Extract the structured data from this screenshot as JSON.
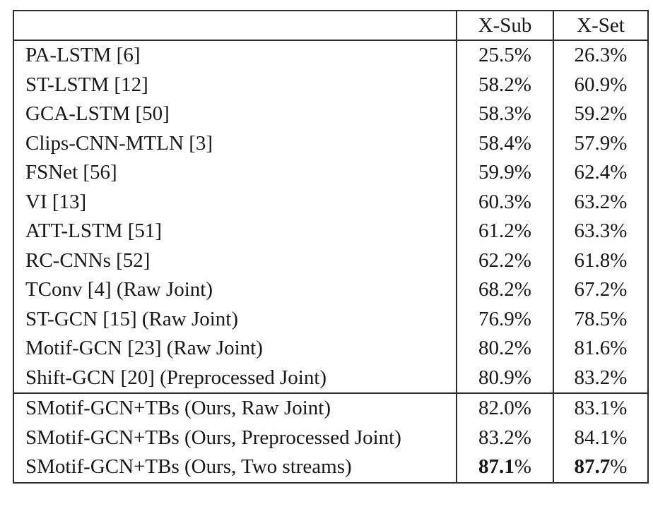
{
  "table": {
    "headers": [
      "",
      "X-Sub",
      "X-Set"
    ],
    "rows": [
      {
        "method": "PA-LSTM [6]",
        "values": [
          "25.5%",
          "26.3%"
        ],
        "bold": false,
        "section": "prior"
      },
      {
        "method": "ST-LSTM [12]",
        "values": [
          "58.2%",
          "60.9%"
        ],
        "bold": false,
        "section": "prior"
      },
      {
        "method": "GCA-LSTM [50]",
        "values": [
          "58.3%",
          "59.2%"
        ],
        "bold": false,
        "section": "prior"
      },
      {
        "method": "Clips-CNN-MTLN [3]",
        "values": [
          "58.4%",
          "57.9%"
        ],
        "bold": false,
        "section": "prior"
      },
      {
        "method": "FSNet [56]",
        "values": [
          "59.9%",
          "62.4%"
        ],
        "bold": false,
        "section": "prior"
      },
      {
        "method": "VI [13]",
        "values": [
          "60.3%",
          "63.2%"
        ],
        "bold": false,
        "section": "prior"
      },
      {
        "method": "ATT-LSTM [51]",
        "values": [
          "61.2%",
          "63.3%"
        ],
        "bold": false,
        "section": "prior"
      },
      {
        "method": "RC-CNNs [52]",
        "values": [
          "62.2%",
          "61.8%"
        ],
        "bold": false,
        "section": "prior"
      },
      {
        "method": "TConv [4] (Raw Joint)",
        "values": [
          "68.2%",
          "67.2%"
        ],
        "bold": false,
        "section": "prior"
      },
      {
        "method": "ST-GCN [15] (Raw Joint)",
        "values": [
          "76.9%",
          "78.5%"
        ],
        "bold": false,
        "section": "prior"
      },
      {
        "method": "Motif-GCN [23] (Raw Joint)",
        "values": [
          "80.2%",
          "81.6%"
        ],
        "bold": false,
        "section": "prior"
      },
      {
        "method": "Shift-GCN [20] (Preprocessed Joint)",
        "values": [
          "80.9%",
          "83.2%"
        ],
        "bold": false,
        "section": "prior"
      },
      {
        "method": "SMotif-GCN+TBs (Ours, Raw Joint)",
        "values": [
          "82.0%",
          "83.1%"
        ],
        "bold": false,
        "section": "ours"
      },
      {
        "method": "SMotif-GCN+TBs (Ours, Preprocessed Joint)",
        "values": [
          "83.2%",
          "84.1%"
        ],
        "bold": false,
        "section": "ours"
      },
      {
        "method": "SMotif-GCN+TBs (Ours, Two streams)",
        "values": [
          "87.1%",
          "87.7%"
        ],
        "bold": true,
        "section": "ours"
      }
    ]
  }
}
